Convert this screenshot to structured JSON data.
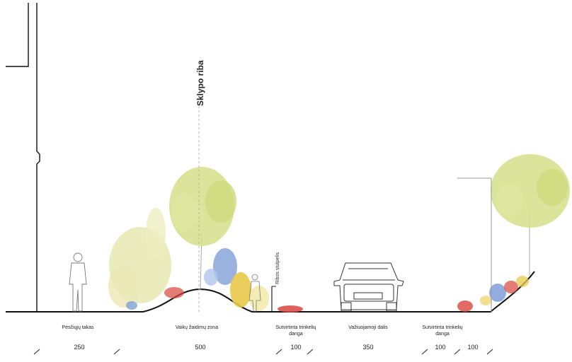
{
  "title": "Sklypo riba",
  "post_label": "Ribos stulpelis",
  "zones": [
    {
      "label": "Pėsčiųjų takas",
      "label_lines": [
        "Pėsčiųjų takas"
      ],
      "width": "250"
    },
    {
      "label": "Vaikų žaidimų zona",
      "label_lines": [
        "Vaikų žaidimų zona"
      ],
      "width": "500"
    },
    {
      "label": "Sutvirtinta trinkelių danga",
      "label_lines": [
        "Sutvirtinta trinkelių",
        "danga"
      ],
      "width": "100"
    },
    {
      "label": "Važiuojamoji dalis",
      "label_lines": [
        "Važiuojamoji dalis"
      ],
      "width": "350"
    },
    {
      "label": "Sutvirtinta trinkelių danga",
      "label_lines": [
        "Sutvirtinta trinkelių",
        "danga"
      ],
      "width": "100"
    },
    {
      "label": "",
      "label_lines": [],
      "width": "100"
    }
  ],
  "colors": {
    "line": "#111111",
    "tree_foliage": "#d6de8a",
    "shrub_blue": "#7f9fd8",
    "shrub_yellow": "#e7c94a",
    "flower_red": "#d9453e",
    "sketch": "#6b6b6b"
  }
}
